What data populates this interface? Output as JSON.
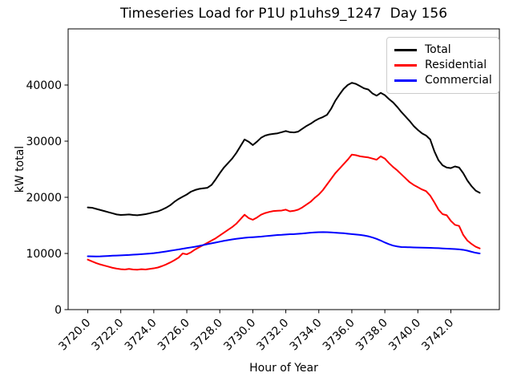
{
  "chart_data": {
    "type": "line",
    "title": "Timeseries Load for P1U p1uhs9_1247  Day 156",
    "xlabel": "Hour of Year",
    "ylabel": "kW total",
    "xlim": [
      3718.81,
      3744.94
    ],
    "ylim": [
      0,
      50000
    ],
    "grid": false,
    "legend_position": "upper right",
    "background": "#ffffff",
    "xticks": [
      3720,
      3722,
      3724,
      3726,
      3728,
      3730,
      3732,
      3734,
      3736,
      3738,
      3740,
      3742
    ],
    "xtick_labels": [
      "3720.0",
      "3722.0",
      "3724.0",
      "3726.0",
      "3728.0",
      "3730.0",
      "3732.0",
      "3734.0",
      "3736.0",
      "3738.0",
      "3740.0",
      "3742.0"
    ],
    "yticks": [
      0,
      10000,
      20000,
      30000,
      40000
    ],
    "ytick_labels": [
      "0",
      "10000",
      "20000",
      "30000",
      "40000"
    ],
    "x_start": 3720.0,
    "x_step": 0.25,
    "series": [
      {
        "name": "Total",
        "color": "#000000",
        "values": [
          18200,
          18150,
          17950,
          17750,
          17550,
          17350,
          17150,
          16950,
          16850,
          16900,
          16950,
          16850,
          16800,
          16900,
          17000,
          17150,
          17350,
          17500,
          17800,
          18150,
          18600,
          19200,
          19700,
          20100,
          20500,
          21000,
          21300,
          21500,
          21600,
          21700,
          22200,
          23200,
          24300,
          25300,
          26100,
          26900,
          27900,
          29100,
          30300,
          29900,
          29300,
          29900,
          30600,
          31000,
          31200,
          31300,
          31400,
          31600,
          31800,
          31600,
          31550,
          31700,
          32200,
          32700,
          33100,
          33600,
          34000,
          34300,
          34700,
          35800,
          37200,
          38300,
          39300,
          40000,
          40400,
          40200,
          39800,
          39400,
          39200,
          38500,
          38100,
          38600,
          38200,
          37500,
          36900,
          36100,
          35200,
          34400,
          33600,
          32700,
          32000,
          31400,
          31000,
          30300,
          28200,
          26600,
          25700,
          25300,
          25200,
          25500,
          25300,
          24300,
          23000,
          22000,
          21200,
          20800
        ]
      },
      {
        "name": "Residential",
        "color": "#ff0000",
        "values": [
          8900,
          8600,
          8300,
          8050,
          7850,
          7650,
          7450,
          7300,
          7200,
          7150,
          7250,
          7150,
          7100,
          7200,
          7150,
          7250,
          7350,
          7500,
          7750,
          8050,
          8400,
          8800,
          9250,
          10000,
          9850,
          10200,
          10700,
          11100,
          11500,
          11900,
          12300,
          12700,
          13200,
          13700,
          14200,
          14700,
          15300,
          16100,
          16900,
          16300,
          16000,
          16400,
          16900,
          17200,
          17400,
          17550,
          17600,
          17650,
          17800,
          17500,
          17600,
          17800,
          18200,
          18700,
          19200,
          19900,
          20500,
          21300,
          22300,
          23300,
          24300,
          25100,
          25900,
          26700,
          27600,
          27500,
          27300,
          27200,
          27100,
          26900,
          26700,
          27300,
          26900,
          26100,
          25400,
          24800,
          24100,
          23400,
          22700,
          22200,
          21800,
          21400,
          21100,
          20300,
          19100,
          17800,
          17000,
          16800,
          15800,
          15100,
          14900,
          13300,
          12300,
          11700,
          11200,
          10900
        ]
      },
      {
        "name": "Commercial",
        "color": "#0000ff",
        "values": [
          9500,
          9480,
          9460,
          9480,
          9520,
          9560,
          9600,
          9630,
          9660,
          9700,
          9730,
          9780,
          9830,
          9880,
          9930,
          9990,
          10060,
          10150,
          10250,
          10360,
          10480,
          10600,
          10720,
          10840,
          10960,
          11080,
          11200,
          11350,
          11500,
          11650,
          11800,
          11950,
          12100,
          12250,
          12380,
          12500,
          12600,
          12700,
          12780,
          12850,
          12900,
          12950,
          13000,
          13080,
          13150,
          13220,
          13280,
          13320,
          13380,
          13420,
          13450,
          13500,
          13550,
          13620,
          13700,
          13750,
          13780,
          13800,
          13780,
          13750,
          13700,
          13650,
          13600,
          13520,
          13450,
          13380,
          13300,
          13200,
          13050,
          12850,
          12600,
          12300,
          11950,
          11650,
          11400,
          11250,
          11150,
          11120,
          11100,
          11080,
          11050,
          11030,
          11010,
          11000,
          10970,
          10940,
          10900,
          10860,
          10820,
          10780,
          10730,
          10650,
          10500,
          10300,
          10120,
          10000
        ]
      }
    ]
  }
}
